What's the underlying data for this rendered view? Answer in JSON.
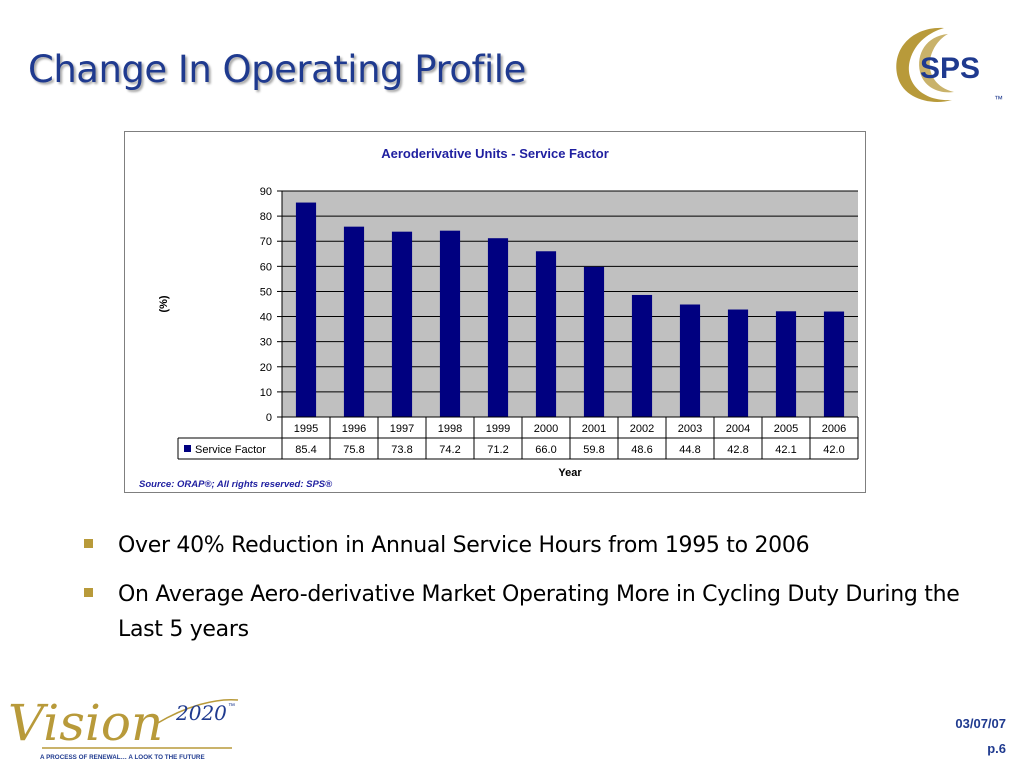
{
  "slide": {
    "title": "Change In Operating Profile",
    "logo_text": "SPS",
    "tm": "™",
    "date": "03/07/07",
    "page": "p.6"
  },
  "vision_logo": {
    "word": "Vision",
    "year": "2020",
    "tm": "™",
    "tagline": "A PROCESS OF RENEWAL… A LOOK TO THE FUTURE"
  },
  "bullets": [
    "Over 40% Reduction in Annual Service Hours from 1995 to 2006",
    "On Average Aero-derivative Market Operating More in Cycling Duty During the Last 5 years"
  ],
  "colors": {
    "title": "#1f3a8f",
    "bar": "#000080",
    "plot_bg": "#c0c0c0",
    "chart_title": "#1f1fa0",
    "bullet": "#b89a3a",
    "logo_gold": "#b89a3a"
  },
  "chart_data": {
    "type": "bar",
    "title": "Aeroderivative Units - Service Factor",
    "xlabel": "Year",
    "ylabel": "(%)",
    "ylim": [
      0,
      90
    ],
    "yticks": [
      0,
      10,
      20,
      30,
      40,
      50,
      60,
      70,
      80,
      90
    ],
    "grid": true,
    "categories": [
      "1995",
      "1996",
      "1997",
      "1998",
      "1999",
      "2000",
      "2001",
      "2002",
      "2003",
      "2004",
      "2005",
      "2006"
    ],
    "series": [
      {
        "name": "Service Factor",
        "values": [
          85.4,
          75.8,
          73.8,
          74.2,
          71.2,
          66.0,
          59.8,
          48.6,
          44.8,
          42.8,
          42.1,
          42.0
        ],
        "labels": [
          "85.4",
          "75.8",
          "73.8",
          "74.2",
          "71.2",
          "66.0",
          "59.8",
          "48.6",
          "44.8",
          "42.8",
          "42.1",
          "42.0"
        ]
      }
    ],
    "data_table": true,
    "legend": "data-table",
    "source": "Source: ORAP®; All rights reserved: SPS®"
  }
}
